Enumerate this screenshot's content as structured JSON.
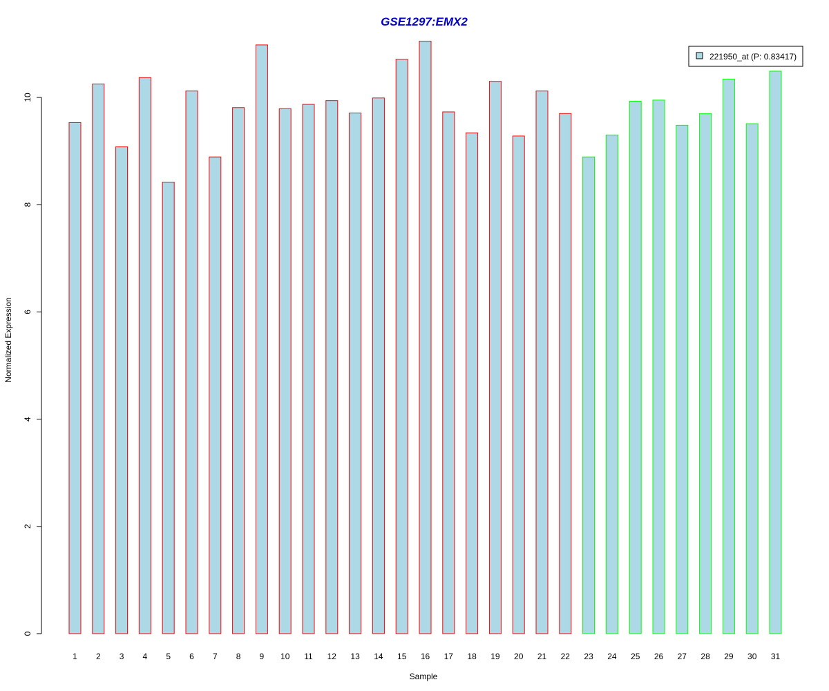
{
  "chart_data": {
    "type": "bar",
    "title": "GSE1297:EMX2",
    "xlabel": "Sample",
    "ylabel": "Normalized Expression",
    "categories": [
      "1",
      "2",
      "3",
      "4",
      "5",
      "6",
      "7",
      "8",
      "9",
      "10",
      "11",
      "12",
      "13",
      "14",
      "15",
      "16",
      "17",
      "18",
      "19",
      "20",
      "21",
      "22",
      "23",
      "24",
      "25",
      "26",
      "27",
      "28",
      "29",
      "30",
      "31"
    ],
    "series": [
      {
        "name": "221950_at (P: 0.83417)",
        "values": [
          9.53,
          10.25,
          9.08,
          10.37,
          8.42,
          10.12,
          8.89,
          9.81,
          10.98,
          9.79,
          9.87,
          9.94,
          9.71,
          9.99,
          10.71,
          11.05,
          9.73,
          9.34,
          10.3,
          9.28,
          10.12,
          9.7,
          8.89,
          9.3,
          9.93,
          9.95,
          9.48,
          9.7,
          10.34,
          9.51,
          10.49
        ]
      }
    ],
    "groups": [
      {
        "from": 1,
        "to": 22,
        "border_color": "#ff0000"
      },
      {
        "from": 23,
        "to": 31,
        "border_color": "#00ff00"
      }
    ],
    "ylim": [
      0,
      11.05
    ],
    "yticks": [
      0,
      2,
      4,
      6,
      8,
      10
    ],
    "legend": {
      "label": "221950_at (P: 0.83417)",
      "position": "top-right"
    },
    "colors": {
      "bar_fill": "#add8e6",
      "title": "#0000cc",
      "group1_border": "#ff0000",
      "group2_border": "#00ff00"
    },
    "grid": false
  }
}
